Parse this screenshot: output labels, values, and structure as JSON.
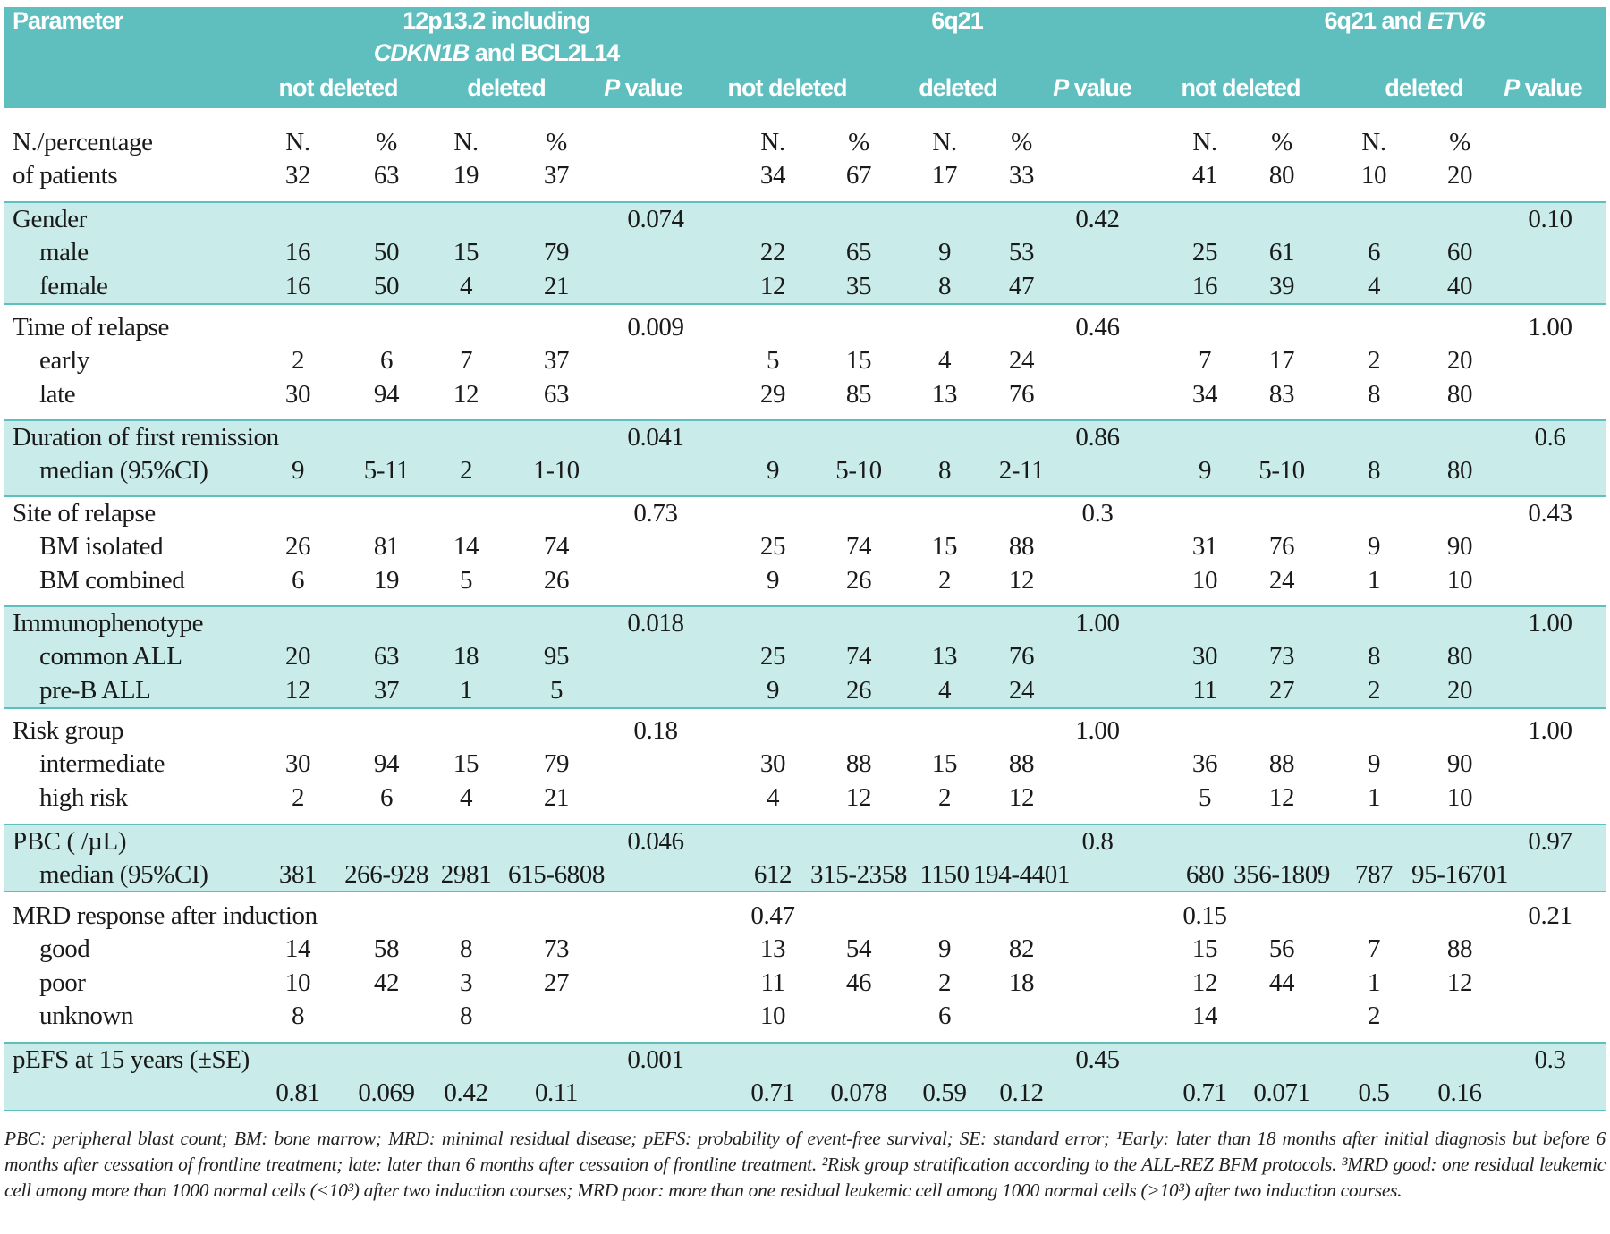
{
  "header": {
    "parameter": "Parameter",
    "groups": [
      {
        "line1": "12p13.2 including",
        "line2_italic": "CDKN1B",
        "line2_rest": " and BCL2L14"
      },
      {
        "line1": "6q21"
      },
      {
        "line1_plain": "6q21 and ",
        "line1_italic": "ETV6"
      }
    ],
    "not_deleted": "not deleted",
    "deleted": "deleted",
    "p_italic": "P",
    "p_rest": " value"
  },
  "colors": {
    "header_bg": "#5fbfbf",
    "shade_bg": "#c9ecea",
    "rule": "#5fbfbf"
  },
  "groups": [
    {
      "shade": false,
      "rows": [
        {
          "label": "N./percentage",
          "sub": false,
          "cells": [
            "N.",
            "%",
            "N.",
            "%",
            "",
            "N.",
            "%",
            "N.",
            "%",
            "",
            "N.",
            "%",
            "N.",
            "%",
            ""
          ]
        },
        {
          "label": "of patients",
          "sub": false,
          "cells": [
            "32",
            "63",
            "19",
            "37",
            "",
            "34",
            "67",
            "17",
            "33",
            "",
            "41",
            "80",
            "10",
            "20",
            ""
          ]
        }
      ]
    },
    {
      "shade": true,
      "rows": [
        {
          "label": "Gender",
          "sub": false,
          "cells": [
            "",
            "",
            "",
            "",
            "0.074",
            "",
            "",
            "",
            "",
            "0.42",
            "",
            "",
            "",
            "",
            "0.10"
          ]
        },
        {
          "label": "male",
          "sub": true,
          "cells": [
            "16",
            "50",
            "15",
            "79",
            "",
            "22",
            "65",
            "9",
            "53",
            "",
            "25",
            "61",
            "6",
            "60",
            ""
          ]
        },
        {
          "label": "female",
          "sub": true,
          "cells": [
            "16",
            "50",
            "4",
            "21",
            "",
            "12",
            "35",
            "8",
            "47",
            "",
            "16",
            "39",
            "4",
            "40",
            ""
          ]
        }
      ]
    },
    {
      "shade": false,
      "rows": [
        {
          "label": "Time of relapse",
          "sub": false,
          "cells": [
            "",
            "",
            "",
            "",
            "0.009",
            "",
            "",
            "",
            "",
            "0.46",
            "",
            "",
            "",
            "",
            "1.00"
          ]
        },
        {
          "label": "early",
          "sub": true,
          "cells": [
            "2",
            "6",
            "7",
            "37",
            "",
            "5",
            "15",
            "4",
            "24",
            "",
            "7",
            "17",
            "2",
            "20",
            ""
          ]
        },
        {
          "label": "late",
          "sub": true,
          "cells": [
            "30",
            "94",
            "12",
            "63",
            "",
            "29",
            "85",
            "13",
            "76",
            "",
            "34",
            "83",
            "8",
            "80",
            ""
          ]
        }
      ]
    },
    {
      "shade": true,
      "rows": [
        {
          "label": "Duration of first remission",
          "sub": false,
          "cells": [
            "",
            "",
            "",
            "",
            "0.041",
            "",
            "",
            "",
            "",
            "0.86",
            "",
            "",
            "",
            "",
            "0.6"
          ]
        },
        {
          "label": "median (95%CI)",
          "sub": true,
          "cells": [
            "9",
            "5-11",
            "2",
            "1-10",
            "",
            "9",
            "5-10",
            "8",
            "2-11",
            "",
            "9",
            "5-10",
            "8",
            "80",
            ""
          ]
        }
      ]
    },
    {
      "shade": false,
      "rows": [
        {
          "label": "Site of relapse",
          "sub": false,
          "cells": [
            "",
            "",
            "",
            "",
            "0.73",
            "",
            "",
            "",
            "",
            "0.3",
            "",
            "",
            "",
            "",
            "0.43"
          ]
        },
        {
          "label": "BM isolated",
          "sub": true,
          "cells": [
            "26",
            "81",
            "14",
            "74",
            "",
            "25",
            "74",
            "15",
            "88",
            "",
            "31",
            "76",
            "9",
            "90",
            ""
          ]
        },
        {
          "label": "BM combined",
          "sub": true,
          "cells": [
            "6",
            "19",
            "5",
            "26",
            "",
            "9",
            "26",
            "2",
            "12",
            "",
            "10",
            "24",
            "1",
            "10",
            ""
          ]
        }
      ]
    },
    {
      "shade": true,
      "rows": [
        {
          "label": "Immunophenotype",
          "sub": false,
          "cells": [
            "",
            "",
            "",
            "",
            "0.018",
            "",
            "",
            "",
            "",
            "1.00",
            "",
            "",
            "",
            "",
            "1.00"
          ]
        },
        {
          "label": "common ALL",
          "sub": true,
          "cells": [
            "20",
            "63",
            "18",
            "95",
            "",
            "25",
            "74",
            "13",
            "76",
            "",
            "30",
            "73",
            "8",
            "80",
            ""
          ]
        },
        {
          "label": "pre-B ALL",
          "sub": true,
          "cells": [
            "12",
            "37",
            "1",
            "5",
            "",
            "9",
            "26",
            "4",
            "24",
            "",
            "11",
            "27",
            "2",
            "20",
            ""
          ]
        }
      ]
    },
    {
      "shade": false,
      "rows": [
        {
          "label": "Risk group",
          "sub": false,
          "cells": [
            "",
            "",
            "",
            "",
            "0.18",
            "",
            "",
            "",
            "",
            "1.00",
            "",
            "",
            "",
            "",
            "1.00"
          ]
        },
        {
          "label": "intermediate",
          "sub": true,
          "cells": [
            "30",
            "94",
            "15",
            "79",
            "",
            "30",
            "88",
            "15",
            "88",
            "",
            "36",
            "88",
            "9",
            "90",
            ""
          ]
        },
        {
          "label": "high risk",
          "sub": true,
          "cells": [
            "2",
            "6",
            "4",
            "21",
            "",
            "4",
            "12",
            "2",
            "12",
            "",
            "5",
            "12",
            "1",
            "10",
            ""
          ]
        }
      ]
    },
    {
      "shade": true,
      "rows": [
        {
          "label": "PBC ( /µL)",
          "sub": false,
          "cells": [
            "",
            "",
            "",
            "",
            "0.046",
            "",
            "",
            "",
            "",
            "0.8",
            "",
            "",
            "",
            "",
            "0.97"
          ]
        },
        {
          "label": "median (95%CI)",
          "sub": true,
          "cells": [
            "381",
            "266-928",
            "2981",
            "615-6808",
            "",
            "612",
            "315-2358",
            "1150",
            "194-4401",
            "",
            "680",
            "356-1809",
            "787",
            "95-16701",
            ""
          ]
        }
      ]
    },
    {
      "shade": false,
      "rows": [
        {
          "label": "MRD response after induction",
          "sub": false,
          "cells": [
            "",
            "",
            "",
            "",
            "",
            "0.47",
            "",
            "",
            "",
            "",
            "0.15",
            "",
            "",
            "",
            "0.21"
          ]
        },
        {
          "label": "good",
          "sub": true,
          "cells": [
            "14",
            "58",
            "8",
            "73",
            "",
            "13",
            "54",
            "9",
            "82",
            "",
            "15",
            "56",
            "7",
            "88",
            ""
          ]
        },
        {
          "label": "poor",
          "sub": true,
          "cells": [
            "10",
            "42",
            "3",
            "27",
            "",
            "11",
            "46",
            "2",
            "18",
            "",
            "12",
            "44",
            "1",
            "12",
            ""
          ]
        },
        {
          "label": "unknown",
          "sub": true,
          "cells": [
            "8",
            "",
            "8",
            "",
            "",
            "10",
            "",
            "6",
            "",
            "",
            "14",
            "",
            "2",
            "",
            ""
          ]
        }
      ]
    },
    {
      "shade": true,
      "rows": [
        {
          "label": "pEFS at 15 years (±SE)",
          "sub": false,
          "cells": [
            "",
            "",
            "",
            "",
            "0.001",
            "",
            "",
            "",
            "",
            "0.45",
            "",
            "",
            "",
            "",
            "0.3"
          ]
        },
        {
          "label": "",
          "sub": false,
          "cells": [
            "0.81",
            "0.069",
            "0.42",
            "0.11",
            "",
            "0.71",
            "0.078",
            "0.59",
            "0.12",
            "",
            "0.71",
            "0.071",
            "0.5",
            "0.16",
            ""
          ]
        }
      ]
    }
  ],
  "footnote": "PBC: peripheral blast count; BM: bone marrow; MRD: minimal residual disease; pEFS: probability of event-free survival; SE: standard error; ¹Early: later than 18 months after initial diagnosis but before 6 months after cessation of frontline treatment; late: later than 6 months after cessation of frontline treatment. ²Risk group stratification according to the ALL-REZ BFM protocols. ³MRD good: one residual leukemic cell among more than 1000 normal cells (<10³) after two induction courses; MRD poor: more than one residual leukemic cell among 1000 normal cells (>10³) after two induction courses."
}
